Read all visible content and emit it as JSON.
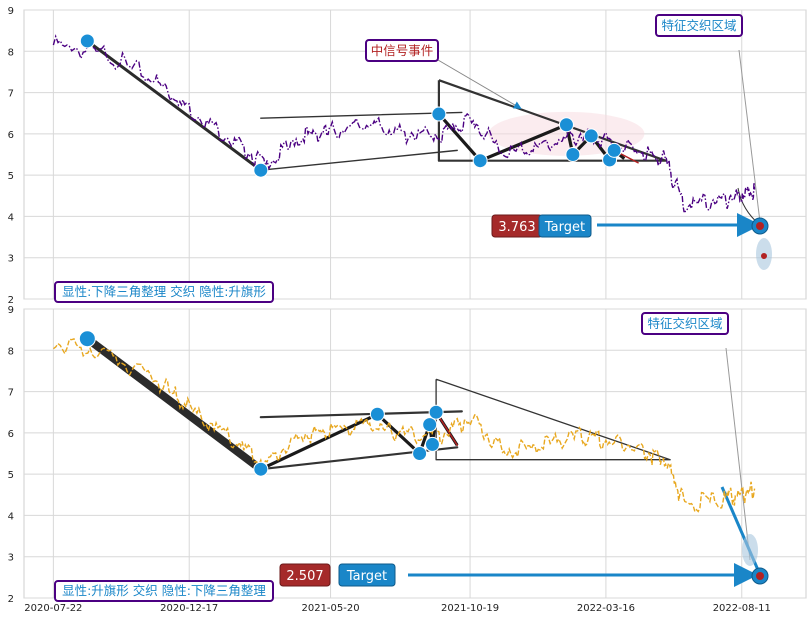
{
  "chart_data": [
    {
      "type": "line",
      "ylim": [
        2,
        9
      ],
      "yticks": [
        2,
        3,
        4,
        5,
        6,
        7,
        8,
        9
      ],
      "grid": true,
      "series": [
        {
          "color": "#4b0082",
          "style": "dash-dot",
          "x": [
            "2020-07-22",
            "2020-09-15",
            "2020-11-10",
            "2020-12-17",
            "2021-02-01",
            "2021-03-10",
            "2021-04-20",
            "2021-05-20",
            "2021-06-30",
            "2021-08-05",
            "2021-09-15",
            "2021-10-19",
            "2021-11-25",
            "2022-01-05",
            "2022-02-15",
            "2022-03-16",
            "2022-04-25",
            "2022-05-20",
            "2022-06-10",
            "2022-07-20",
            "2022-08-11",
            "2022-08-25"
          ],
          "values": [
            8.15,
            7.95,
            7.3,
            6.6,
            5.85,
            5.25,
            5.95,
            6.05,
            6.25,
            6.0,
            5.95,
            6.35,
            5.55,
            5.7,
            5.95,
            5.8,
            5.55,
            5.35,
            4.25,
            4.4,
            4.5,
            4.65
          ]
        }
      ],
      "pivot_points": [
        {
          "x": "2020-08-28",
          "y": 8.25
        },
        {
          "x": "2021-03-05",
          "y": 5.12
        },
        {
          "x": "2021-09-15",
          "y": 6.48
        },
        {
          "x": "2021-10-30",
          "y": 5.35
        },
        {
          "x": "2022-02-01",
          "y": 6.22
        },
        {
          "x": "2022-02-08",
          "y": 5.5
        },
        {
          "x": "2022-02-28",
          "y": 5.95
        },
        {
          "x": "2022-03-20",
          "y": 5.37
        },
        {
          "x": "2022-03-25",
          "y": 5.6
        }
      ],
      "callouts": {
        "event_label": "中信号事件",
        "zone_label": "特征交织区域",
        "pattern_label": "显性:下降三角整理 交织 隐性:升旗形",
        "value_badge": "3.763",
        "target_label": "Target"
      },
      "target_value": 3.763
    },
    {
      "type": "line",
      "ylim": [
        2,
        9
      ],
      "yticks": [
        2,
        3,
        4,
        5,
        6,
        7,
        8,
        9
      ],
      "xticks": [
        "2020-07-22",
        "2020-12-17",
        "2021-05-20",
        "2021-10-19",
        "2022-03-16",
        "2022-08-11"
      ],
      "grid": true,
      "series": [
        {
          "color": "#e8a820",
          "style": "dashed",
          "x": [
            "2020-07-22",
            "2020-09-15",
            "2020-11-10",
            "2020-12-17",
            "2021-02-01",
            "2021-03-10",
            "2021-04-20",
            "2021-05-20",
            "2021-06-30",
            "2021-08-05",
            "2021-09-15",
            "2021-10-19",
            "2021-11-25",
            "2022-01-05",
            "2022-02-15",
            "2022-03-16",
            "2022-04-25",
            "2022-05-20",
            "2022-06-10",
            "2022-07-20",
            "2022-08-11",
            "2022-08-25"
          ],
          "values": [
            8.15,
            7.95,
            7.3,
            6.6,
            5.85,
            5.25,
            5.95,
            6.05,
            6.25,
            6.0,
            5.95,
            6.35,
            5.55,
            5.7,
            5.95,
            5.8,
            5.55,
            5.35,
            4.25,
            4.4,
            4.5,
            4.65
          ]
        }
      ],
      "pivot_points": [
        {
          "x": "2020-08-28",
          "y": 8.28
        },
        {
          "x": "2021-03-05",
          "y": 5.12
        },
        {
          "x": "2021-07-10",
          "y": 6.45
        },
        {
          "x": "2021-08-25",
          "y": 5.5
        },
        {
          "x": "2021-09-05",
          "y": 6.2
        },
        {
          "x": "2021-09-08",
          "y": 5.72
        },
        {
          "x": "2021-09-12",
          "y": 6.5
        }
      ],
      "callouts": {
        "zone_label": "特征交织区域",
        "pattern_label": "显性:升旗形 交织 隐性:下降三角整理",
        "value_badge": "2.507",
        "target_label": "Target"
      },
      "target_value": 2.507
    }
  ]
}
